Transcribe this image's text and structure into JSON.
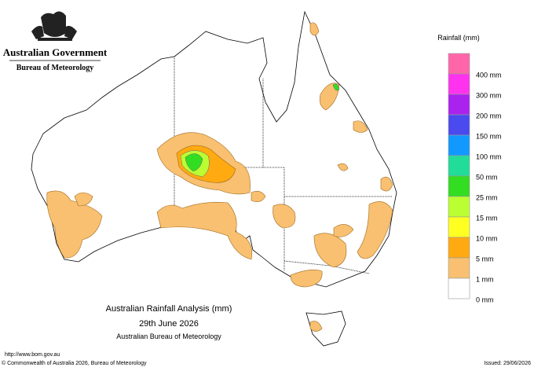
{
  "header": {
    "government": "Australian Government",
    "agency": "Bureau of Meteorology"
  },
  "map": {
    "title": "Australian Rainfall Analysis (mm)",
    "date": "29th June 2026",
    "source": "Australian Bureau of Meteorology"
  },
  "legend": {
    "title": "Rainfall (mm)",
    "items": [
      {
        "color": "#ff66aa"
      },
      {
        "color": "#ff33ee",
        "label": "400 mm"
      },
      {
        "color": "#aa22ee",
        "label": "300 mm"
      },
      {
        "color": "#4a4aee",
        "label": "200 mm"
      },
      {
        "color": "#1199ff",
        "label": "150 mm"
      },
      {
        "color": "#22dd99",
        "label": "100 mm"
      },
      {
        "color": "#33dd22",
        "label": "50 mm"
      },
      {
        "color": "#bbff33",
        "label": "25 mm"
      },
      {
        "color": "#ffff22",
        "label": "15 mm"
      },
      {
        "color": "#ffaa11",
        "label": "10 mm"
      },
      {
        "color": "#f8c070",
        "label": "5 mm"
      },
      {
        "color": "#ffffff",
        "label": "1 mm"
      },
      {
        "label": "0 mm"
      }
    ]
  },
  "footer": {
    "url": "http://www.bom.gov.au",
    "copyright": "© Commonwealth of Australia 2026, Bureau of Meteorology",
    "issued": "Issued: 29/06/2026"
  }
}
